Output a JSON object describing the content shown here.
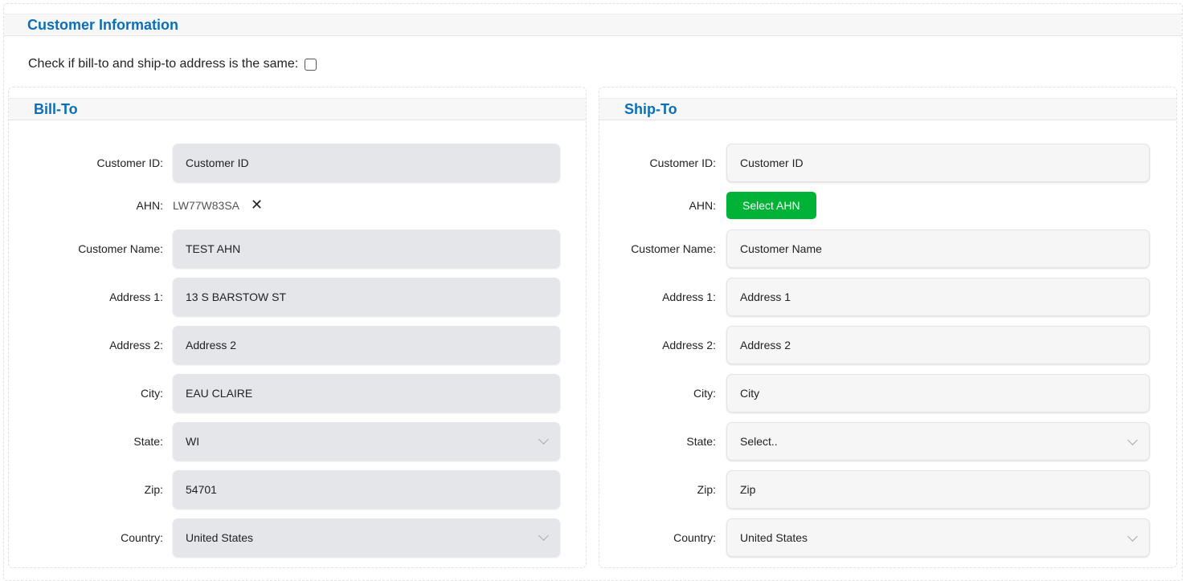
{
  "title": "Customer Information",
  "same_address_label": "Check if bill-to and ship-to address is the same:",
  "labels": {
    "customer_id": "Customer ID:",
    "ahn": "AHN:",
    "customer_name": "Customer Name:",
    "address1": "Address 1:",
    "address2": "Address 2:",
    "city": "City:",
    "state": "State:",
    "zip": "Zip:",
    "country": "Country:"
  },
  "bill": {
    "title": "Bill-To",
    "customer_id_ph": "Customer ID",
    "ahn_value": "LW77W83SA",
    "customer_name": "TEST AHN",
    "address1": "13 S BARSTOW ST",
    "address2_ph": "Address 2",
    "city": "EAU CLAIRE",
    "state": "WI",
    "zip": "54701",
    "country": "United States"
  },
  "ship": {
    "title": "Ship-To",
    "customer_id_ph": "Customer ID",
    "select_ahn": "Select AHN",
    "customer_name_ph": "Customer Name",
    "address1_ph": "Address 1",
    "address2_ph": "Address 2",
    "city_ph": "City",
    "state": "Select..",
    "zip_ph": "Zip",
    "country": "United States"
  },
  "colors": {
    "accent": "#0b6fb8",
    "button": "#00b336"
  }
}
